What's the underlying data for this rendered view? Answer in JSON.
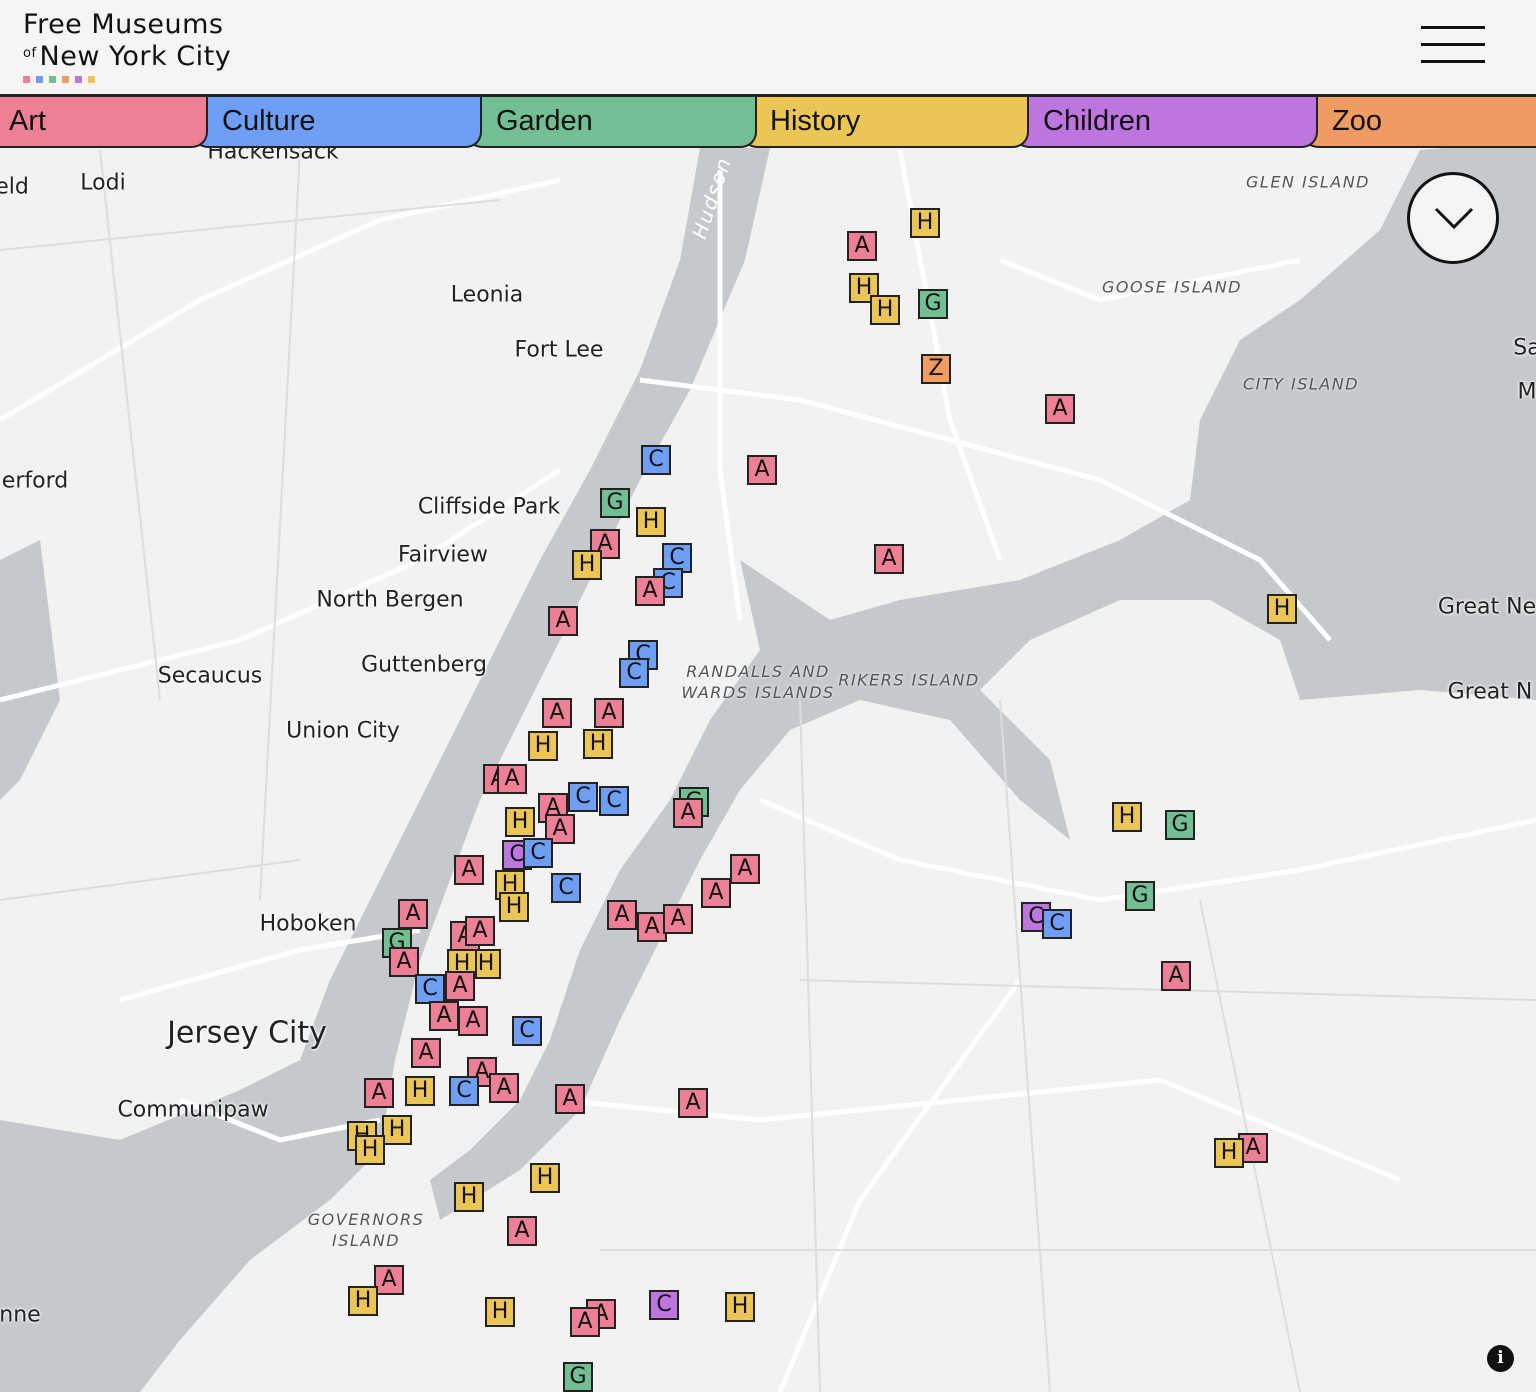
{
  "header": {
    "title_line1": "Free Museums",
    "title_of": "of",
    "title_line2": "New York City",
    "menu_icon": "hamburger-icon"
  },
  "colors": {
    "art": "#ee8096",
    "culture": "#6e9ef5",
    "garden": "#72bf94",
    "history": "#ecc557",
    "children": "#bd76e0",
    "zoo": "#ee9c62",
    "water": "#c5c9cb",
    "land": "#f2f2f1"
  },
  "tabs": [
    {
      "label": "Art",
      "category": "art"
    },
    {
      "label": "Culture",
      "category": "culture"
    },
    {
      "label": "Garden",
      "category": "garden"
    },
    {
      "label": "History",
      "category": "history"
    },
    {
      "label": "Children",
      "category": "children"
    },
    {
      "label": "Zoo",
      "category": "zoo"
    }
  ],
  "map": {
    "places": [
      "Hackensack",
      "eld",
      "Lodi",
      "Leonia",
      "Fort Lee",
      "erford",
      "Cliffside Park",
      "Fairview",
      "North Bergen",
      "Secaucus",
      "Guttenberg",
      "Union City",
      "Hoboken",
      "Jersey City",
      "Communipaw",
      "nne",
      "Great Ne",
      "Great N",
      "Sa",
      "M"
    ],
    "islands": [
      "GLEN ISLAND",
      "GOOSE ISLAND",
      "CITY ISLAND",
      "RANDALLS AND\nWARDS ISLANDS",
      "RIKERS ISLAND",
      "GOVERNORS\nISLAND"
    ],
    "river": "Hudson",
    "markers": [
      {
        "l": "A",
        "c": "art"
      },
      {
        "l": "H",
        "c": "history"
      },
      {
        "l": "H",
        "c": "history"
      },
      {
        "l": "H",
        "c": "history"
      },
      {
        "l": "G",
        "c": "garden"
      },
      {
        "l": "Z",
        "c": "zoo"
      },
      {
        "l": "A",
        "c": "art"
      },
      {
        "l": "C",
        "c": "culture"
      },
      {
        "l": "A",
        "c": "art"
      },
      {
        "l": "G",
        "c": "garden"
      },
      {
        "l": "H",
        "c": "history"
      },
      {
        "l": "A",
        "c": "art"
      },
      {
        "l": "H",
        "c": "history"
      },
      {
        "l": "C",
        "c": "culture"
      },
      {
        "l": "C",
        "c": "culture"
      },
      {
        "l": "A",
        "c": "art"
      },
      {
        "l": "A",
        "c": "art"
      },
      {
        "l": "A",
        "c": "art"
      },
      {
        "l": "H",
        "c": "history"
      },
      {
        "l": "C",
        "c": "culture"
      },
      {
        "l": "C",
        "c": "culture"
      },
      {
        "l": "A",
        "c": "art"
      },
      {
        "l": "H",
        "c": "history"
      },
      {
        "l": "A",
        "c": "art"
      },
      {
        "l": "H",
        "c": "history"
      },
      {
        "l": "A",
        "c": "art"
      },
      {
        "l": "A",
        "c": "art"
      },
      {
        "l": "C",
        "c": "culture"
      },
      {
        "l": "C",
        "c": "culture"
      },
      {
        "l": "A",
        "c": "art"
      },
      {
        "l": "A",
        "c": "art"
      },
      {
        "l": "H",
        "c": "history"
      },
      {
        "l": "G",
        "c": "garden"
      },
      {
        "l": "A",
        "c": "art"
      },
      {
        "l": "C",
        "c": "children"
      },
      {
        "l": "C",
        "c": "culture"
      },
      {
        "l": "H",
        "c": "history"
      },
      {
        "l": "H",
        "c": "history"
      },
      {
        "l": "A",
        "c": "art"
      },
      {
        "l": "C",
        "c": "culture"
      },
      {
        "l": "A",
        "c": "art"
      },
      {
        "l": "A",
        "c": "art"
      },
      {
        "l": "A",
        "c": "art"
      },
      {
        "l": "A",
        "c": "art"
      },
      {
        "l": "A",
        "c": "art"
      },
      {
        "l": "A",
        "c": "art"
      },
      {
        "l": "G",
        "c": "garden"
      },
      {
        "l": "A",
        "c": "art"
      },
      {
        "l": "A",
        "c": "art"
      },
      {
        "l": "A",
        "c": "art"
      },
      {
        "l": "H",
        "c": "history"
      },
      {
        "l": "H",
        "c": "history"
      },
      {
        "l": "C",
        "c": "culture"
      },
      {
        "l": "A",
        "c": "art"
      },
      {
        "l": "A",
        "c": "art"
      },
      {
        "l": "A",
        "c": "art"
      },
      {
        "l": "C",
        "c": "culture"
      },
      {
        "l": "A",
        "c": "art"
      },
      {
        "l": "A",
        "c": "art"
      },
      {
        "l": "A",
        "c": "art"
      },
      {
        "l": "C",
        "c": "culture"
      },
      {
        "l": "A",
        "c": "art"
      },
      {
        "l": "H",
        "c": "history"
      },
      {
        "l": "H",
        "c": "history"
      },
      {
        "l": "H",
        "c": "history"
      },
      {
        "l": "H",
        "c": "history"
      },
      {
        "l": "A",
        "c": "art"
      },
      {
        "l": "A",
        "c": "art"
      },
      {
        "l": "H",
        "c": "history"
      },
      {
        "l": "G",
        "c": "garden"
      },
      {
        "l": "G",
        "c": "garden"
      },
      {
        "l": "C",
        "c": "children"
      },
      {
        "l": "C",
        "c": "culture"
      },
      {
        "l": "A",
        "c": "art"
      },
      {
        "l": "A",
        "c": "art"
      },
      {
        "l": "H",
        "c": "history"
      },
      {
        "l": "H",
        "c": "history"
      },
      {
        "l": "H",
        "c": "history"
      },
      {
        "l": "A",
        "c": "art"
      },
      {
        "l": "A",
        "c": "art"
      },
      {
        "l": "H",
        "c": "history"
      },
      {
        "l": "H",
        "c": "history"
      },
      {
        "l": "A",
        "c": "art"
      },
      {
        "l": "A",
        "c": "art"
      },
      {
        "l": "C",
        "c": "children"
      },
      {
        "l": "H",
        "c": "history"
      },
      {
        "l": "G",
        "c": "garden"
      }
    ]
  },
  "controls": {
    "toggle_icon": "chevron-down-icon",
    "info_label": "i"
  }
}
